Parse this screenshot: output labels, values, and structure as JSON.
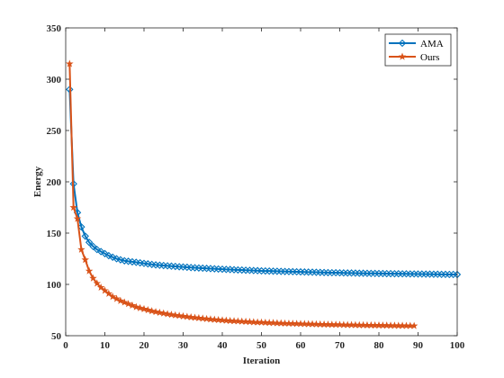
{
  "chart_data": {
    "type": "line",
    "title": "",
    "xlabel": "Iteration",
    "ylabel": "Energy",
    "xlim": [
      0,
      100
    ],
    "ylim": [
      50,
      350
    ],
    "xticks": [
      0,
      10,
      20,
      30,
      40,
      50,
      60,
      70,
      80,
      90,
      100
    ],
    "yticks": [
      50,
      100,
      150,
      200,
      250,
      300,
      350
    ],
    "grid": false,
    "legend": "top-right",
    "series": [
      {
        "name": "AMA",
        "color": "#0072BD",
        "marker": "diamond",
        "x": [
          1,
          2,
          3,
          4,
          5,
          6,
          7,
          8,
          9,
          10,
          11,
          12,
          13,
          14,
          15,
          16,
          17,
          18,
          19,
          20,
          21,
          22,
          23,
          24,
          25,
          26,
          27,
          28,
          29,
          30,
          31,
          32,
          33,
          34,
          35,
          36,
          37,
          38,
          39,
          40,
          41,
          42,
          43,
          44,
          45,
          46,
          47,
          48,
          49,
          50,
          51,
          52,
          53,
          54,
          55,
          56,
          57,
          58,
          59,
          60,
          61,
          62,
          63,
          64,
          65,
          66,
          67,
          68,
          69,
          70,
          71,
          72,
          73,
          74,
          75,
          76,
          77,
          78,
          79,
          80,
          81,
          82,
          83,
          84,
          85,
          86,
          87,
          88,
          89,
          90,
          91,
          92,
          93,
          94,
          95,
          96,
          97,
          98,
          99,
          100
        ],
        "y": [
          290,
          198,
          170,
          156,
          147,
          141,
          137,
          134,
          132,
          130,
          128,
          126.5,
          125,
          124,
          123,
          122.5,
          122,
          121.5,
          121,
          120.5,
          120,
          119.5,
          119,
          118.7,
          118.4,
          118.1,
          117.8,
          117.5,
          117.2,
          117,
          116.7,
          116.4,
          116.2,
          116,
          115.8,
          115.6,
          115.4,
          115.2,
          115,
          114.8,
          114.6,
          114.5,
          114.3,
          114.1,
          114,
          113.8,
          113.7,
          113.5,
          113.4,
          113.2,
          113.1,
          113,
          112.9,
          112.8,
          112.7,
          112.6,
          112.5,
          112.4,
          112.3,
          112.2,
          112.1,
          112,
          111.9,
          111.8,
          111.7,
          111.6,
          111.5,
          111.4,
          111.4,
          111.3,
          111.2,
          111.1,
          111.1,
          111,
          110.9,
          110.9,
          110.8,
          110.7,
          110.7,
          110.6,
          110.6,
          110.5,
          110.5,
          110.4,
          110.4,
          110.3,
          110.3,
          110.2,
          110.2,
          110.1,
          110.1,
          110,
          110,
          109.9,
          109.9,
          109.8,
          109.8,
          109.7,
          109.7,
          109.6
        ]
      },
      {
        "name": "Ours",
        "color": "#D95319",
        "marker": "pentagram",
        "x": [
          1,
          2,
          3,
          4,
          5,
          6,
          7,
          8,
          9,
          10,
          11,
          12,
          13,
          14,
          15,
          16,
          17,
          18,
          19,
          20,
          21,
          22,
          23,
          24,
          25,
          26,
          27,
          28,
          29,
          30,
          31,
          32,
          33,
          34,
          35,
          36,
          37,
          38,
          39,
          40,
          41,
          42,
          43,
          44,
          45,
          46,
          47,
          48,
          49,
          50,
          51,
          52,
          53,
          54,
          55,
          56,
          57,
          58,
          59,
          60,
          61,
          62,
          63,
          64,
          65,
          66,
          67,
          68,
          69,
          70,
          71,
          72,
          73,
          74,
          75,
          76,
          77,
          78,
          79,
          80,
          81,
          82,
          83,
          84,
          85,
          86,
          87,
          88,
          89
        ],
        "y": [
          315,
          175,
          164,
          134,
          124,
          113,
          106,
          101,
          97,
          94,
          91,
          88,
          86,
          84,
          82.5,
          81,
          79.5,
          78,
          77,
          76,
          75,
          74,
          73.2,
          72.5,
          71.8,
          71.1,
          70.5,
          70,
          69.5,
          69,
          68.5,
          68,
          67.6,
          67.2,
          66.8,
          66.4,
          66,
          65.7,
          65.4,
          65.1,
          64.8,
          64.5,
          64.3,
          64.1,
          63.9,
          63.7,
          63.5,
          63.3,
          63.1,
          63,
          62.8,
          62.6,
          62.5,
          62.3,
          62.2,
          62,
          61.9,
          61.8,
          61.7,
          61.6,
          61.5,
          61.4,
          61.3,
          61.2,
          61.1,
          61,
          60.9,
          60.8,
          60.8,
          60.7,
          60.6,
          60.5,
          60.5,
          60.4,
          60.3,
          60.3,
          60.2,
          60.2,
          60.1,
          60.1,
          60,
          60,
          59.9,
          59.9,
          59.8,
          59.8,
          59.7,
          59.7,
          59.6
        ]
      }
    ]
  }
}
